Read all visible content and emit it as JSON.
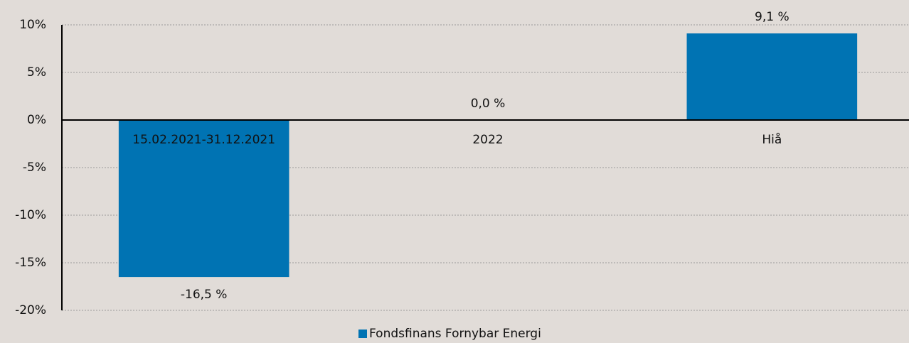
{
  "chart_data": {
    "type": "bar",
    "categories": [
      "15.02.2021-31.12.2021",
      "2022",
      "Hiå"
    ],
    "series": [
      {
        "name": "Fondsfinans Fornybar Energi",
        "color": "#0073b3",
        "values": [
          -16.5,
          0,
          9.1
        ],
        "value_labels": [
          "-16,5 %",
          "0,0 %",
          "9,1 %"
        ]
      }
    ],
    "ylim": [
      -20,
      10
    ],
    "yticks": [
      {
        "value": -20,
        "label": "-20%"
      },
      {
        "value": -15,
        "label": "-15%"
      },
      {
        "value": -10,
        "label": "-10%"
      },
      {
        "value": -5,
        "label": "-5%"
      },
      {
        "value": 0,
        "label": "0%"
      },
      {
        "value": 5,
        "label": "5%"
      },
      {
        "value": 10,
        "label": "10%"
      }
    ],
    "grid": true,
    "legend": "bottom"
  }
}
